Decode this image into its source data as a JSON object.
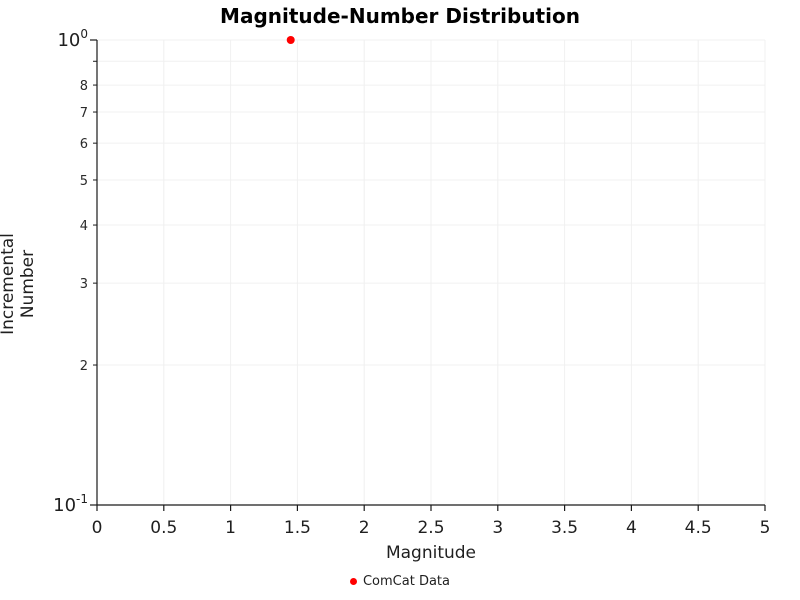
{
  "chart_data": {
    "type": "scatter",
    "title": "Magnitude-Number Distribution",
    "xlabel": "Magnitude",
    "ylabel": "Incremental Number",
    "xlim": [
      0,
      5
    ],
    "ylim": [
      0.1,
      1.0
    ],
    "y_scale": "log",
    "grid": true,
    "grid_color": "#f0f0f0",
    "axis_color": "#1a1a1a",
    "x_ticks": [
      0,
      0.5,
      1,
      1.5,
      2,
      2.5,
      3,
      3.5,
      4,
      4.5,
      5
    ],
    "x_tick_labels": [
      "0",
      "0.5",
      "1",
      "1.5",
      "2",
      "2.5",
      "3",
      "3.5",
      "4",
      "4.5",
      "5"
    ],
    "y_major_ticks": [
      {
        "value": 1.0,
        "base": "10",
        "exp": "0"
      },
      {
        "value": 0.1,
        "base": "10",
        "exp": "-1"
      }
    ],
    "y_minor_ticks": [
      {
        "value": 0.9,
        "label": ""
      },
      {
        "value": 0.8,
        "label": "8"
      },
      {
        "value": 0.7,
        "label": "7"
      },
      {
        "value": 0.6,
        "label": "6"
      },
      {
        "value": 0.5,
        "label": "5"
      },
      {
        "value": 0.4,
        "label": "4"
      },
      {
        "value": 0.3,
        "label": "3"
      },
      {
        "value": 0.2,
        "label": "2"
      }
    ],
    "series": [
      {
        "name": "ComCat Data",
        "color": "#ff0000",
        "marker": "circle",
        "points": [
          [
            1.45,
            1.0
          ]
        ]
      }
    ],
    "legend": {
      "label": "ComCat Data",
      "position": "below-center"
    }
  }
}
